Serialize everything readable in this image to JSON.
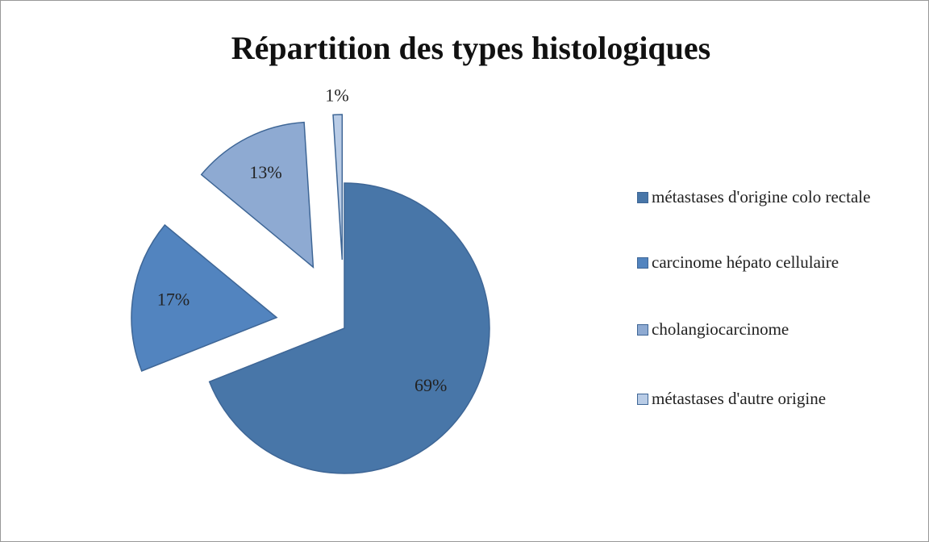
{
  "chart_data": {
    "type": "pie",
    "title": "Répartition des types histologiques",
    "categories": [
      "métastases d'origine colo rectale",
      "carcinome hépato cellulaire",
      "cholangiocarcinome",
      "métastases d'autre origine"
    ],
    "values": [
      69,
      17,
      13,
      1
    ],
    "value_labels": [
      "69%",
      "17%",
      "13%",
      "1%"
    ],
    "colors": [
      "#4876a8",
      "#5284bf",
      "#8eaad2",
      "#b9cce6"
    ],
    "legend": "right"
  }
}
